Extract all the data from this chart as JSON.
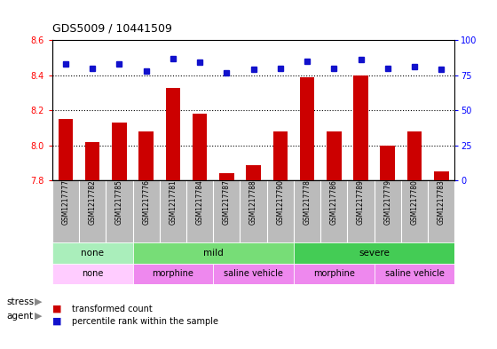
{
  "title": "GDS5009 / 10441509",
  "samples": [
    "GSM1217777",
    "GSM1217782",
    "GSM1217785",
    "GSM1217776",
    "GSM1217781",
    "GSM1217784",
    "GSM1217787",
    "GSM1217788",
    "GSM1217790",
    "GSM1217778",
    "GSM1217786",
    "GSM1217789",
    "GSM1217779",
    "GSM1217780",
    "GSM1217783"
  ],
  "transformed_count": [
    8.15,
    8.02,
    8.13,
    8.08,
    8.33,
    8.18,
    7.84,
    7.89,
    8.08,
    8.39,
    8.08,
    8.4,
    8.0,
    8.08,
    7.85
  ],
  "percentile_rank": [
    83,
    80,
    83,
    78,
    87,
    84,
    77,
    79,
    80,
    85,
    80,
    86,
    80,
    81,
    79
  ],
  "ylim_left": [
    7.8,
    8.6
  ],
  "ylim_right": [
    0,
    100
  ],
  "yticks_left": [
    7.8,
    8.0,
    8.2,
    8.4,
    8.6
  ],
  "yticks_right": [
    0,
    25,
    50,
    75,
    100
  ],
  "bar_color": "#cc0000",
  "dot_color": "#1111cc",
  "stress_groups": [
    {
      "label": "none",
      "start": 0,
      "end": 3,
      "color": "#aaeebb"
    },
    {
      "label": "mild",
      "start": 3,
      "end": 9,
      "color": "#77dd77"
    },
    {
      "label": "severe",
      "start": 9,
      "end": 15,
      "color": "#44cc55"
    }
  ],
  "agent_groups": [
    {
      "label": "none",
      "start": 0,
      "end": 3,
      "color": "#ffccff"
    },
    {
      "label": "morphine",
      "start": 3,
      "end": 6,
      "color": "#ee88ee"
    },
    {
      "label": "saline vehicle",
      "start": 6,
      "end": 9,
      "color": "#ee88ee"
    },
    {
      "label": "morphine",
      "start": 9,
      "end": 12,
      "color": "#ee88ee"
    },
    {
      "label": "saline vehicle",
      "start": 12,
      "end": 15,
      "color": "#ee88ee"
    }
  ],
  "tick_bg": "#bbbbbb",
  "plot_bg": "#ffffff",
  "fig_bg": "#ffffff"
}
